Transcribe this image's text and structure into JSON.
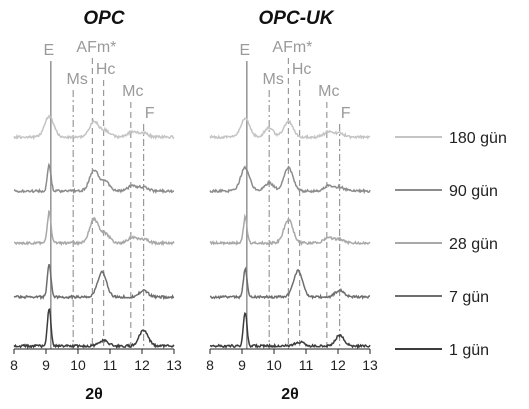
{
  "chart_data": [
    {
      "type": "line",
      "title": "OPC",
      "xlabel": "2θ",
      "ylabel": "",
      "xlim": [
        8,
        13
      ],
      "x_ticks": [
        "8",
        "9",
        "10",
        "11",
        "12",
        "13"
      ],
      "reference_lines": [
        {
          "label": "E",
          "x": 9.15,
          "style": "solid"
        },
        {
          "label": "Ms",
          "x": 9.85,
          "style": "dashdot"
        },
        {
          "label": "AFm*",
          "x": 10.45,
          "style": "dashed"
        },
        {
          "label": "Hc",
          "x": 10.8,
          "style": "dashed"
        },
        {
          "label": "Mc",
          "x": 11.65,
          "style": "dashed"
        },
        {
          "label": "F",
          "x": 12.05,
          "style": "dashdot"
        }
      ],
      "series": [
        {
          "name": "180 gün",
          "color": "#c4c4c4",
          "peaks": [
            {
              "x": 9.1,
              "height": 0.8
            },
            {
              "x": 10.5,
              "height": 0.6
            },
            {
              "x": 10.85,
              "height": 0.25
            },
            {
              "x": 11.7,
              "height": 0.2
            },
            {
              "x": 12.05,
              "height": 0.15
            }
          ]
        },
        {
          "name": "90 gün",
          "color": "#8c8c8c",
          "peaks": [
            {
              "x": 9.1,
              "height": 1.0
            },
            {
              "x": 10.5,
              "height": 0.8
            },
            {
              "x": 10.85,
              "height": 0.35
            },
            {
              "x": 11.7,
              "height": 0.2
            },
            {
              "x": 12.05,
              "height": 0.15
            }
          ]
        },
        {
          "name": "28 gün",
          "color": "#a8a8a8",
          "peaks": [
            {
              "x": 9.1,
              "height": 1.2
            },
            {
              "x": 10.5,
              "height": 0.9
            },
            {
              "x": 10.85,
              "height": 0.35
            },
            {
              "x": 11.7,
              "height": 0.2
            },
            {
              "x": 12.05,
              "height": 0.15
            }
          ]
        },
        {
          "name": "7 gün",
          "color": "#6e6e6e",
          "peaks": [
            {
              "x": 9.1,
              "height": 1.3
            },
            {
              "x": 10.75,
              "height": 0.95
            },
            {
              "x": 12.05,
              "height": 0.25
            }
          ]
        },
        {
          "name": "1 gün",
          "color": "#3c3c3c",
          "peaks": [
            {
              "x": 9.1,
              "height": 1.45
            },
            {
              "x": 10.8,
              "height": 0.2
            },
            {
              "x": 12.05,
              "height": 0.6
            }
          ]
        }
      ]
    },
    {
      "type": "line",
      "title": "OPC-UK",
      "xlabel": "2θ",
      "ylabel": "",
      "xlim": [
        8,
        13
      ],
      "x_ticks": [
        "8",
        "9",
        "10",
        "11",
        "12",
        "13"
      ],
      "reference_lines": [
        {
          "label": "E",
          "x": 9.15,
          "style": "solid"
        },
        {
          "label": "Ms",
          "x": 9.85,
          "style": "dashdot"
        },
        {
          "label": "AFm*",
          "x": 10.45,
          "style": "dashed"
        },
        {
          "label": "Hc",
          "x": 10.8,
          "style": "dashed"
        },
        {
          "label": "Mc",
          "x": 11.65,
          "style": "dashed"
        },
        {
          "label": "F",
          "x": 12.05,
          "style": "dashdot"
        }
      ],
      "series": [
        {
          "name": "180 gün",
          "color": "#c4c4c4",
          "peaks": [
            {
              "x": 9.1,
              "height": 0.7
            },
            {
              "x": 9.85,
              "height": 0.35
            },
            {
              "x": 10.45,
              "height": 0.6
            },
            {
              "x": 11.7,
              "height": 0.2
            },
            {
              "x": 12.05,
              "height": 0.15
            }
          ]
        },
        {
          "name": "90 gün",
          "color": "#8c8c8c",
          "peaks": [
            {
              "x": 9.1,
              "height": 0.9
            },
            {
              "x": 9.85,
              "height": 0.3
            },
            {
              "x": 10.45,
              "height": 0.9
            },
            {
              "x": 11.7,
              "height": 0.2
            },
            {
              "x": 12.05,
              "height": 0.15
            }
          ]
        },
        {
          "name": "28 gün",
          "color": "#a8a8a8",
          "peaks": [
            {
              "x": 9.1,
              "height": 1.0
            },
            {
              "x": 10.45,
              "height": 0.9
            },
            {
              "x": 11.7,
              "height": 0.2
            },
            {
              "x": 12.05,
              "height": 0.15
            }
          ]
        },
        {
          "name": "7 gün",
          "color": "#6e6e6e",
          "peaks": [
            {
              "x": 9.1,
              "height": 1.1
            },
            {
              "x": 10.75,
              "height": 1.0
            },
            {
              "x": 12.05,
              "height": 0.25
            }
          ]
        },
        {
          "name": "1 gün",
          "color": "#3c3c3c",
          "peaks": [
            {
              "x": 9.1,
              "height": 1.3
            },
            {
              "x": 10.8,
              "height": 0.15
            },
            {
              "x": 12.05,
              "height": 0.4
            }
          ]
        }
      ]
    }
  ]
}
